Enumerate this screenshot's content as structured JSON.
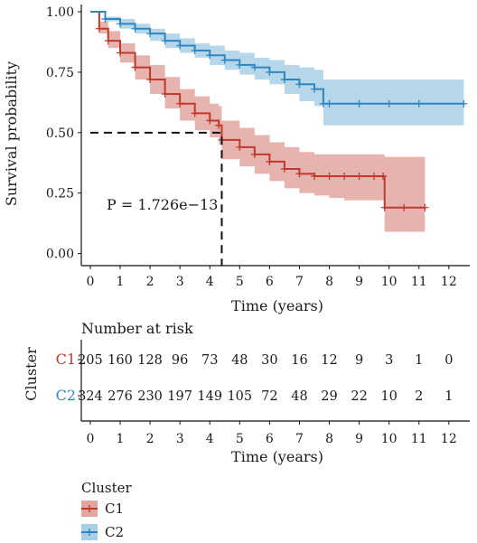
{
  "chart_data": [
    {
      "type": "line",
      "subtype": "kaplan-meier",
      "xlabel": "Time (years)",
      "ylabel": "Survival probability",
      "xlim": [
        -0.3,
        12.7
      ],
      "ylim": [
        -0.05,
        1.03
      ],
      "x_ticks": [
        "0",
        "1",
        "2",
        "3",
        "4",
        "5",
        "6",
        "7",
        "8",
        "9",
        "10",
        "11",
        "12"
      ],
      "y_ticks": [
        "0.00",
        "0.25",
        "0.50",
        "0.75",
        "1.00"
      ],
      "annotation": "P = 1.726e−13",
      "median_line": {
        "x": 4.4,
        "y": 0.5
      },
      "series": [
        {
          "name": "C1",
          "color": "#c0392b",
          "fill": "#e2a6a0",
          "x": [
            0,
            0.3,
            0.6,
            1.0,
            1.5,
            2.0,
            2.5,
            3.0,
            3.5,
            4.0,
            4.3,
            4.4,
            5.0,
            5.5,
            6.0,
            6.5,
            7.0,
            7.5,
            8.0,
            8.5,
            9.0,
            9.5,
            9.8,
            9.85,
            10.5,
            11.2
          ],
          "y": [
            1.0,
            0.93,
            0.88,
            0.83,
            0.77,
            0.72,
            0.66,
            0.62,
            0.58,
            0.55,
            0.53,
            0.47,
            0.44,
            0.41,
            0.38,
            0.35,
            0.33,
            0.32,
            0.32,
            0.32,
            0.32,
            0.32,
            0.32,
            0.19,
            0.19,
            0.19
          ],
          "lower": [
            1.0,
            0.91,
            0.85,
            0.79,
            0.72,
            0.66,
            0.6,
            0.55,
            0.51,
            0.48,
            0.45,
            0.39,
            0.36,
            0.33,
            0.3,
            0.27,
            0.25,
            0.24,
            0.23,
            0.22,
            0.22,
            0.22,
            0.22,
            0.09,
            0.09,
            0.09
          ],
          "upper": [
            1.0,
            0.96,
            0.92,
            0.87,
            0.82,
            0.78,
            0.73,
            0.68,
            0.65,
            0.62,
            0.61,
            0.55,
            0.52,
            0.49,
            0.46,
            0.44,
            0.42,
            0.41,
            0.41,
            0.41,
            0.41,
            0.41,
            0.41,
            0.4,
            0.4,
            0.4
          ]
        },
        {
          "name": "C2",
          "color": "#2e86c1",
          "fill": "#a9cfe6",
          "x": [
            0,
            0.5,
            1.0,
            1.5,
            2.0,
            2.5,
            3.0,
            3.5,
            4.0,
            4.5,
            5.0,
            5.5,
            6.0,
            6.5,
            7.0,
            7.5,
            7.8,
            8.0,
            9.0,
            10.0,
            11.0,
            12.5
          ],
          "y": [
            1.0,
            0.97,
            0.95,
            0.93,
            0.91,
            0.88,
            0.86,
            0.84,
            0.82,
            0.8,
            0.78,
            0.77,
            0.75,
            0.72,
            0.7,
            0.68,
            0.62,
            0.62,
            0.62,
            0.62,
            0.62,
            0.62
          ],
          "lower": [
            1.0,
            0.96,
            0.93,
            0.91,
            0.88,
            0.85,
            0.83,
            0.81,
            0.78,
            0.76,
            0.74,
            0.72,
            0.7,
            0.66,
            0.63,
            0.61,
            0.53,
            0.53,
            0.53,
            0.53,
            0.53,
            0.53
          ],
          "upper": [
            1.0,
            0.98,
            0.97,
            0.95,
            0.93,
            0.91,
            0.89,
            0.87,
            0.86,
            0.84,
            0.83,
            0.81,
            0.8,
            0.78,
            0.77,
            0.76,
            0.72,
            0.72,
            0.72,
            0.72,
            0.72,
            0.72
          ]
        }
      ]
    },
    {
      "type": "table",
      "title": "Number at risk",
      "ylabel": "Cluster",
      "xlabel": "Time (years)",
      "x_ticks": [
        "0",
        "1",
        "2",
        "3",
        "4",
        "5",
        "6",
        "7",
        "8",
        "9",
        "10",
        "11",
        "12"
      ],
      "rows": [
        {
          "name": "C1",
          "color": "#c0392b",
          "values": [
            "205",
            "160",
            "128",
            "96",
            "73",
            "48",
            "30",
            "16",
            "12",
            "9",
            "3",
            "1",
            "0"
          ]
        },
        {
          "name": "C2",
          "color": "#2e86c1",
          "values": [
            "324",
            "276",
            "230",
            "197",
            "149",
            "105",
            "72",
            "48",
            "29",
            "22",
            "10",
            "2",
            "1"
          ]
        }
      ]
    }
  ],
  "legend": {
    "title": "Cluster",
    "items": [
      {
        "label": "C1",
        "color": "#c0392b",
        "fill": "#e2a6a0"
      },
      {
        "label": "C2",
        "color": "#2e86c1",
        "fill": "#a9cfe6"
      }
    ]
  }
}
